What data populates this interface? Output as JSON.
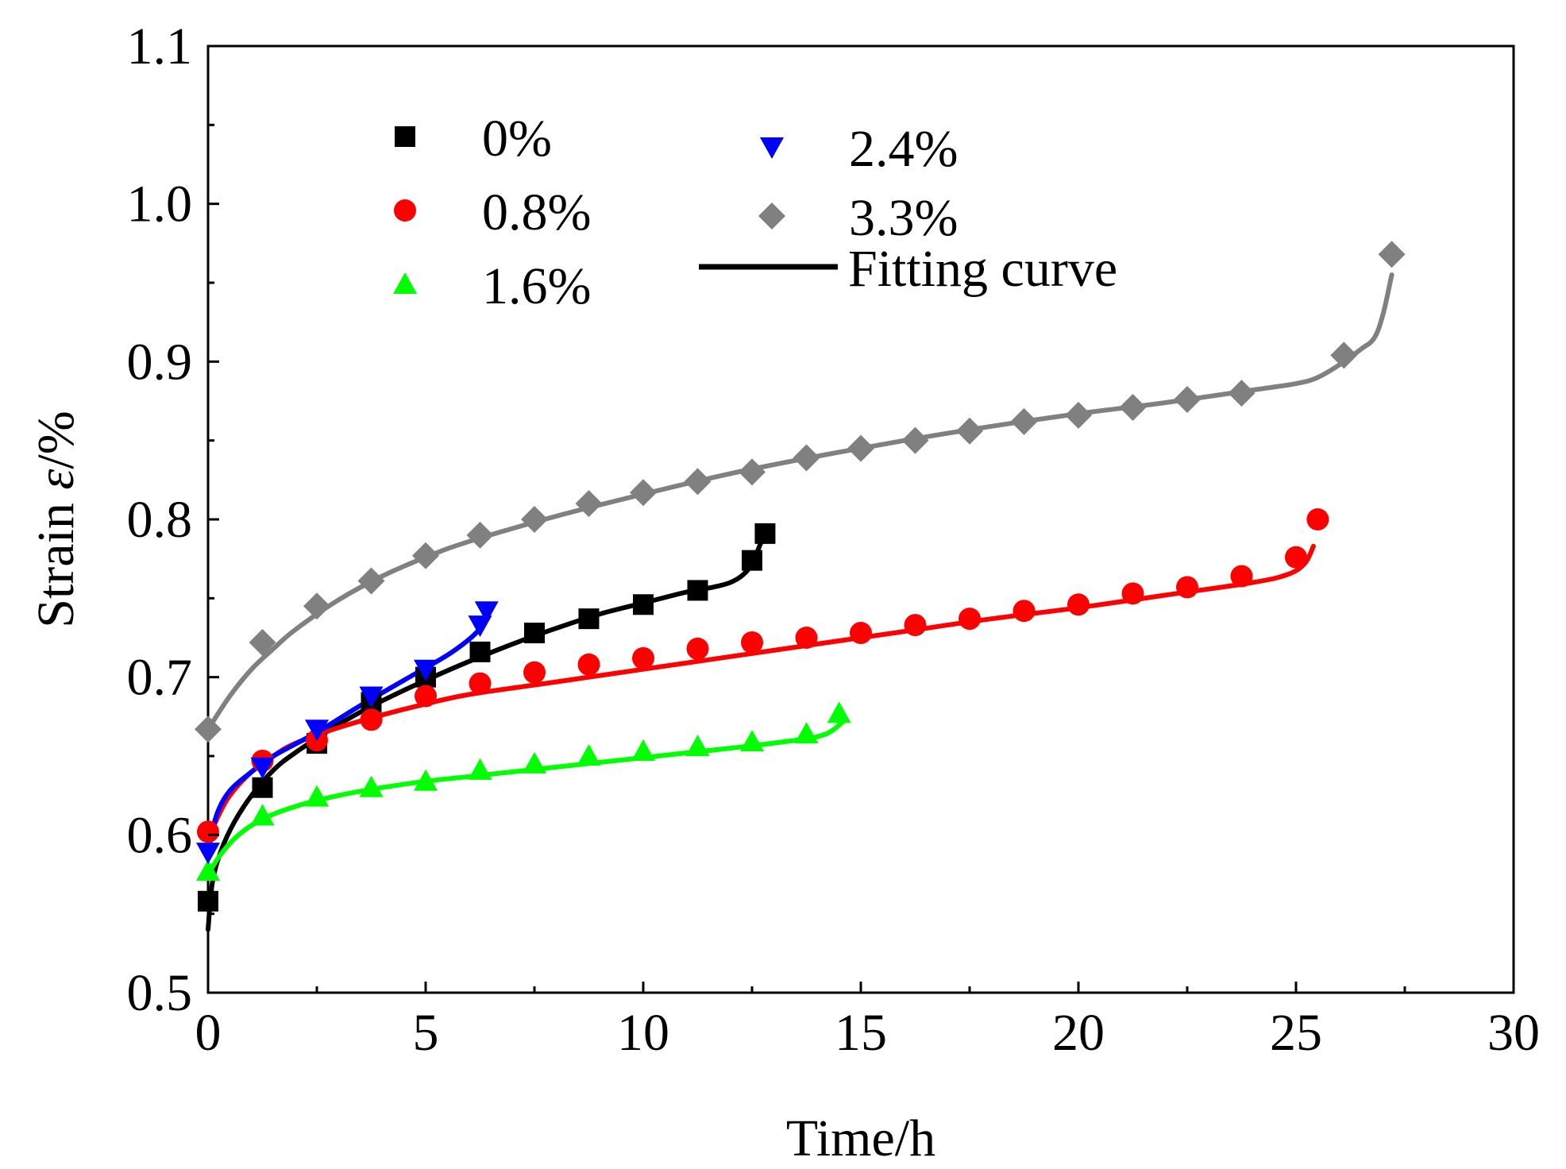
{
  "chart_data": {
    "type": "scatter",
    "title": "",
    "xlabel": "Time/h",
    "ylabel_prefix": "Strain ",
    "ylabel_symbol": "ε",
    "ylabel_suffix": "/%",
    "xlim": [
      0,
      30
    ],
    "ylim": [
      0.5,
      1.1
    ],
    "x_ticks": [
      0,
      5,
      10,
      15,
      20,
      25,
      30
    ],
    "x_tick_labels": [
      "0",
      "5",
      "10",
      "15",
      "20",
      "25",
      "30"
    ],
    "y_ticks": [
      0.5,
      0.6,
      0.7,
      0.8,
      0.9,
      1.0,
      1.1
    ],
    "y_tick_labels": [
      "0.5",
      "0.6",
      "0.7",
      "0.8",
      "0.9",
      "1.0",
      "1.1"
    ],
    "grid": false,
    "legend_position": "top-left",
    "series": [
      {
        "name": "0%",
        "marker": "square",
        "color": "#000000",
        "x": [
          0,
          1.25,
          2.5,
          3.75,
          5,
          6.25,
          7.5,
          8.75,
          10,
          11.25,
          12.5,
          12.8
        ],
        "y": [
          0.558,
          0.63,
          0.658,
          0.684,
          0.7,
          0.716,
          0.728,
          0.737,
          0.746,
          0.755,
          0.774,
          0.791
        ],
        "fit_x": [
          0,
          0.1,
          0.3,
          0.6,
          1,
          1.5,
          2,
          3,
          4,
          5,
          6,
          7,
          8,
          9,
          10,
          11,
          11.6,
          12,
          12.3,
          12.5,
          12.7
        ],
        "fit_y": [
          0.54,
          0.57,
          0.59,
          0.608,
          0.625,
          0.641,
          0.652,
          0.67,
          0.685,
          0.698,
          0.71,
          0.721,
          0.731,
          0.74,
          0.747,
          0.754,
          0.757,
          0.76,
          0.765,
          0.772,
          0.785
        ]
      },
      {
        "name": "0.8%",
        "marker": "circle",
        "color": "#ff0000",
        "x": [
          0,
          1.25,
          2.5,
          3.75,
          5,
          6.25,
          7.5,
          8.75,
          10,
          11.25,
          12.5,
          13.75,
          15,
          16.25,
          17.5,
          18.75,
          20,
          21.25,
          22.5,
          23.75,
          25,
          25.5
        ],
        "y": [
          0.602,
          0.647,
          0.66,
          0.673,
          0.688,
          0.696,
          0.703,
          0.708,
          0.712,
          0.718,
          0.722,
          0.725,
          0.728,
          0.733,
          0.737,
          0.742,
          0.746,
          0.753,
          0.757,
          0.764,
          0.776,
          0.8
        ],
        "fit_x": [
          0,
          0.2,
          0.5,
          1,
          1.5,
          2,
          3,
          4,
          5,
          6,
          8,
          10,
          12,
          14,
          16,
          18,
          20,
          22,
          24,
          24.8,
          25.2,
          25.4
        ],
        "fit_y": [
          0.596,
          0.61,
          0.625,
          0.64,
          0.65,
          0.658,
          0.668,
          0.676,
          0.683,
          0.689,
          0.697,
          0.705,
          0.713,
          0.721,
          0.729,
          0.737,
          0.744,
          0.752,
          0.76,
          0.765,
          0.772,
          0.783
        ]
      },
      {
        "name": "1.6%",
        "marker": "triangle-up",
        "color": "#00ff00",
        "x": [
          0,
          1.25,
          2.5,
          3.75,
          5,
          6.25,
          7.5,
          8.75,
          10,
          11.25,
          12.5,
          13.75,
          14.5
        ],
        "y": [
          0.577,
          0.612,
          0.624,
          0.63,
          0.634,
          0.641,
          0.645,
          0.65,
          0.653,
          0.656,
          0.659,
          0.664,
          0.677
        ],
        "fit_x": [
          0,
          0.3,
          0.7,
          1.25,
          2,
          3,
          4,
          5,
          6,
          8,
          10,
          12,
          13.5,
          14.2,
          14.6
        ],
        "fit_y": [
          0.575,
          0.588,
          0.6,
          0.61,
          0.618,
          0.625,
          0.63,
          0.634,
          0.637,
          0.643,
          0.649,
          0.655,
          0.66,
          0.664,
          0.672
        ]
      },
      {
        "name": "2.4%",
        "marker": "triangle-down",
        "color": "#0000ff",
        "x": [
          0,
          1.25,
          2.5,
          3.75,
          5,
          6.25,
          6.4
        ],
        "y": [
          0.589,
          0.643,
          0.667,
          0.688,
          0.705,
          0.733,
          0.742
        ],
        "fit_x": [
          0,
          0.2,
          0.5,
          1,
          1.5,
          2.5,
          3.5,
          4.5,
          5.5,
          6,
          6.3
        ],
        "fit_y": [
          0.59,
          0.613,
          0.628,
          0.64,
          0.65,
          0.665,
          0.682,
          0.698,
          0.714,
          0.724,
          0.732
        ]
      },
      {
        "name": "3.3%",
        "marker": "diamond",
        "color": "#808080",
        "x": [
          0,
          1.25,
          2.5,
          3.75,
          5,
          6.25,
          7.5,
          8.75,
          10,
          11.25,
          12.5,
          13.75,
          15,
          16.25,
          17.5,
          18.75,
          20,
          21.25,
          22.5,
          23.75,
          26.1,
          27.2
        ],
        "y": [
          0.667,
          0.722,
          0.745,
          0.761,
          0.777,
          0.79,
          0.8,
          0.81,
          0.817,
          0.824,
          0.83,
          0.839,
          0.845,
          0.85,
          0.856,
          0.862,
          0.866,
          0.871,
          0.876,
          0.88,
          0.904,
          0.968
        ],
        "fit_x": [
          0,
          0.5,
          1,
          1.5,
          2,
          3,
          4,
          5,
          6,
          8,
          10,
          12,
          14,
          16,
          18,
          20,
          22,
          24,
          25,
          25.5,
          26,
          26.5,
          26.8,
          27,
          27.2
        ],
        "fit_y": [
          0.667,
          0.688,
          0.705,
          0.718,
          0.73,
          0.749,
          0.764,
          0.776,
          0.786,
          0.802,
          0.816,
          0.829,
          0.84,
          0.85,
          0.859,
          0.867,
          0.874,
          0.882,
          0.886,
          0.89,
          0.898,
          0.908,
          0.915,
          0.93,
          0.955
        ]
      }
    ],
    "fit_legend_label": "Fitting curve",
    "fit_legend_color": "#000000"
  }
}
